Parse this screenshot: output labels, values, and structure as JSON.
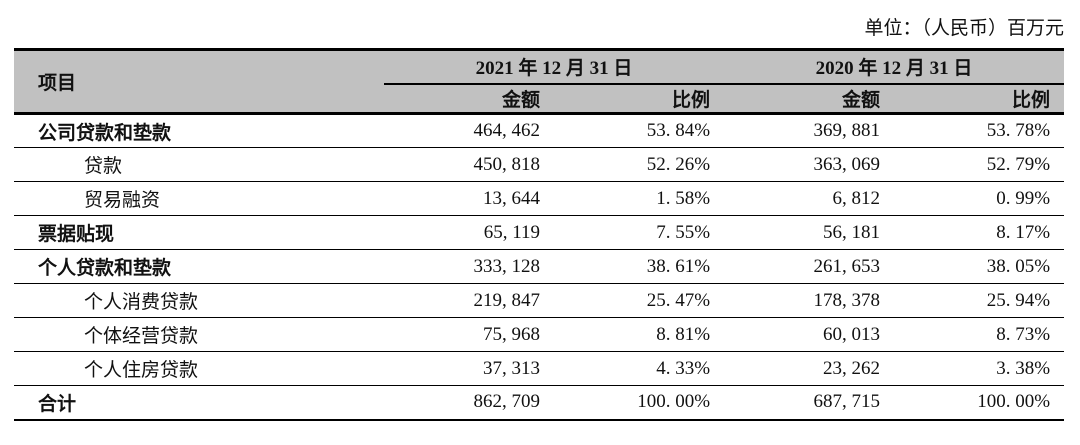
{
  "meta": {
    "unit_label": "单位：（人民币）百万元"
  },
  "table": {
    "item_header": "项目",
    "col_groups": [
      {
        "label": "2021 年 12 月 31 日",
        "sub": [
          "金额",
          "比例"
        ]
      },
      {
        "label": "2020 年 12 月 31 日",
        "sub": [
          "金额",
          "比例"
        ]
      }
    ],
    "rows": [
      {
        "label": "公司贷款和垫款",
        "bold": true,
        "indent": false,
        "values": [
          "464, 462",
          "53. 84%",
          "369, 881",
          "53. 78%"
        ]
      },
      {
        "label": "贷款",
        "bold": false,
        "indent": true,
        "values": [
          "450, 818",
          "52. 26%",
          "363, 069",
          "52. 79%"
        ]
      },
      {
        "label": "贸易融资",
        "bold": false,
        "indent": true,
        "values": [
          "13, 644",
          "1. 58%",
          "6, 812",
          "0. 99%"
        ]
      },
      {
        "label": "票据贴现",
        "bold": true,
        "indent": false,
        "values": [
          "65, 119",
          "7. 55%",
          "56, 181",
          "8. 17%"
        ]
      },
      {
        "label": "个人贷款和垫款",
        "bold": true,
        "indent": false,
        "values": [
          "333, 128",
          "38. 61%",
          "261, 653",
          "38. 05%"
        ]
      },
      {
        "label": "个人消费贷款",
        "bold": false,
        "indent": true,
        "values": [
          "219, 847",
          "25. 47%",
          "178, 378",
          "25. 94%"
        ]
      },
      {
        "label": "个体经营贷款",
        "bold": false,
        "indent": true,
        "values": [
          "75, 968",
          "8. 81%",
          "60, 013",
          "8. 73%"
        ]
      },
      {
        "label": "个人住房贷款",
        "bold": false,
        "indent": true,
        "values": [
          "37, 313",
          "4. 33%",
          "23, 262",
          "3. 38%"
        ]
      },
      {
        "label": "合计",
        "bold": true,
        "indent": false,
        "values": [
          "862, 709",
          "100. 00%",
          "687, 715",
          "100. 00%"
        ]
      }
    ]
  },
  "colors": {
    "header_bg": "#c1c1c1",
    "rule": "#000000",
    "text": "#111111"
  }
}
